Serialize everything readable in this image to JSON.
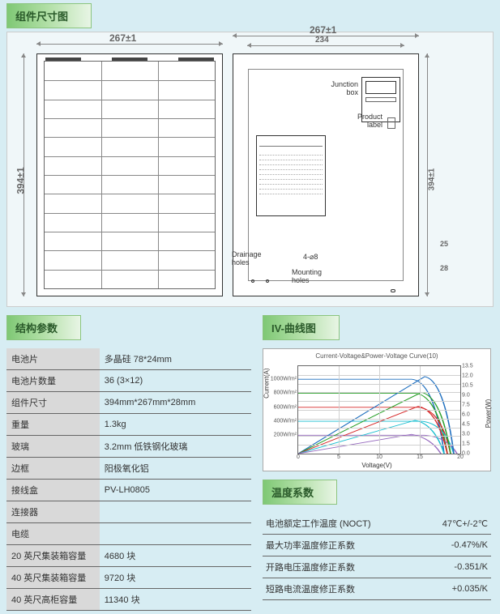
{
  "headers": {
    "dims": "组件尺寸图",
    "struct": "结构参数",
    "iv": "IV-曲线图",
    "temp": "温度系数"
  },
  "dims": {
    "width_label": "267±1",
    "height_label": "394±1",
    "width_label2": "267±1",
    "inner_width": "234",
    "height_label2": "394±1",
    "side25": "25",
    "side28": "28",
    "callouts": {
      "junction": "Junction\nbox",
      "product": "Product\nlabel",
      "drainage": "Drainage\nholes",
      "mounting_spec": "4-⌀8",
      "mounting": "Mounting\nholes"
    }
  },
  "struct_rows": [
    [
      "电池片",
      "多晶硅 78*24mm"
    ],
    [
      "电池片数量",
      "36 (3×12)"
    ],
    [
      "组件尺寸",
      "394mm*267mm*28mm"
    ],
    [
      "重量",
      "1.3kg"
    ],
    [
      "玻璃",
      "3.2mm 低铁钢化玻璃"
    ],
    [
      "边框",
      "阳极氧化铝"
    ],
    [
      "接线盒",
      "PV-LH0805"
    ],
    [
      "连接器",
      ""
    ],
    [
      "电缆",
      ""
    ],
    [
      "20 英尺集装箱容量",
      "4680 块"
    ],
    [
      "40 英尺集装箱容量",
      "9720 块"
    ],
    [
      "40 英尺高柜容量",
      "11340 块"
    ]
  ],
  "chart": {
    "title": "Current-Voltage&Power-Voltage Curve(10)",
    "xlabel": "Voltage(V)",
    "ylabel_left": "Current(A)",
    "ylabel_right": "Power(W)",
    "y_left_ticks": [
      "1000W/m²",
      "800W/m²",
      "600W/m²",
      "400W/m²",
      "200W/m²"
    ],
    "y_left_pos": [
      15,
      31,
      47,
      63,
      79
    ],
    "y_right_ticks": [
      "13.5",
      "12.0",
      "10.5",
      "9.0",
      "7.5",
      "6.0",
      "4.5",
      "3.0",
      "1.5",
      "0.0"
    ],
    "x_ticks": [
      "0",
      "5",
      "10",
      "15",
      "20"
    ],
    "grid_h_pct": [
      10,
      20,
      30,
      40,
      50,
      60,
      70,
      80,
      90
    ],
    "grid_v_pct": [
      25,
      50,
      75
    ],
    "curve_colors": [
      "#1f6fbf",
      "#2aa02a",
      "#d62728",
      "#17becf",
      "#9467bd",
      "#1f6fbf",
      "#2aa02a",
      "#d62728",
      "#17becf",
      "#9467bd"
    ],
    "iv_levels": [
      15,
      31,
      47,
      63,
      79
    ],
    "pv_peak_x": 78,
    "pv_peaks": [
      12,
      30,
      46,
      62,
      78
    ]
  },
  "temp_rows": [
    [
      "电池额定工作温度   (NOCT)",
      "47℃+/-2℃"
    ],
    [
      "最大功率温度修正系数",
      "-0.47%/K"
    ],
    [
      "开路电压温度修正系数",
      "-0.351/K"
    ],
    [
      "短路电流温度修正系数",
      "+0.035/K"
    ]
  ],
  "colors": {
    "hdr_grad_from": "#7fc875",
    "hdr_grad_to": "#e8f5e5",
    "bg": "#d7edf3",
    "table_head": "#d9d9d9"
  }
}
